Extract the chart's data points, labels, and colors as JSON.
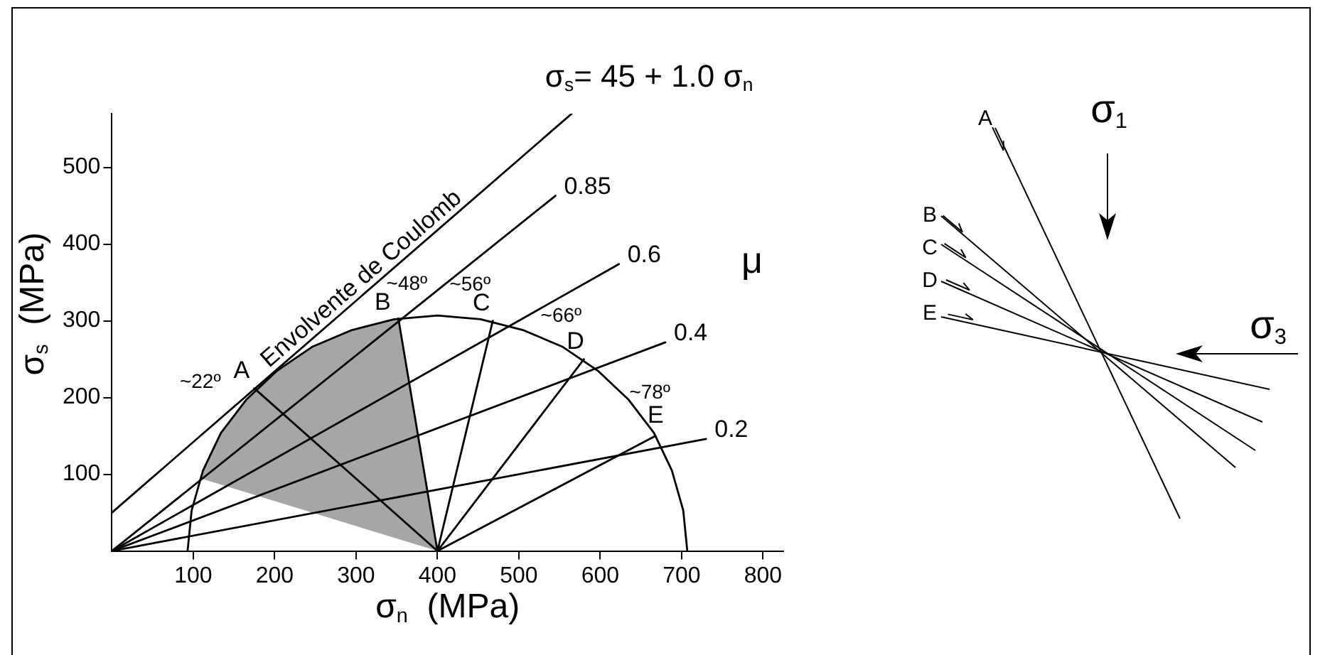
{
  "chart_data": [
    {
      "type": "line",
      "xlabel": "σ$_{n}$  (MPa)",
      "ylabel": "σ$_{s}$  (MPa)",
      "legend_title": "μ",
      "xlim": [
        0,
        825
      ],
      "ylim": [
        0,
        570
      ],
      "xticks": [
        100,
        200,
        300,
        400,
        500,
        600,
        700,
        800
      ],
      "yticks": [
        100,
        200,
        300,
        400,
        500
      ],
      "grid": false,
      "legend": false,
      "annotations": [
        "σ$_{s}$= 45 + 1.0 σ$_{n}$",
        {
          "text": "A",
          "x": 175,
          "y": 212
        },
        {
          "text": "B",
          "x": 352,
          "y": 303
        },
        {
          "text": "C",
          "x": 468,
          "y": 300
        },
        {
          "text": "D",
          "x": 580,
          "y": 250
        },
        {
          "text": "E",
          "x": 668,
          "y": 150
        },
        {
          "text": "~22º",
          "x": 175,
          "y": 212
        },
        {
          "text": "~48º",
          "x": 352,
          "y": 303
        },
        {
          "text": "~56º",
          "x": 468,
          "y": 300
        },
        {
          "text": "~66º",
          "x": 580,
          "y": 250
        },
        {
          "text": "~78º",
          "x": 668,
          "y": 150
        }
      ],
      "series": [
        {
          "type": "area",
          "color": "#a6a6a6",
          "x": [
            400,
            352,
            295,
            246,
            203,
            165,
            134,
            108,
            400
          ],
          "values": [
            0,
            303,
            288,
            266,
            235,
            197,
            154,
            95,
            0
          ]
        },
        {
          "name": "Envolvente de Coulomb",
          "color": "#000000",
          "x": [
            0,
            565
          ],
          "values": [
            50,
            570
          ]
        },
        {
          "name": "0.85",
          "color": "#000000",
          "x": [
            0,
            545
          ],
          "values": [
            0,
            463
          ]
        },
        {
          "name": "0.6",
          "color": "#000000",
          "x": [
            0,
            623
          ],
          "values": [
            0,
            374
          ]
        },
        {
          "name": "0.4",
          "color": "#000000",
          "x": [
            0,
            680
          ],
          "values": [
            0,
            272
          ]
        },
        {
          "name": "0.2",
          "color": "#000000",
          "x": [
            0,
            730
          ],
          "values": [
            0,
            146
          ]
        },
        {
          "color": "#000000",
          "x": [
            707,
            702,
            688,
            666,
            635,
            597,
            554,
            505,
            453,
            400,
            347,
            295,
            246,
            203,
            165,
            134,
            112,
            98,
            93
          ],
          "values": [
            0,
            53,
            105,
            154,
            197,
            235,
            266,
            288,
            302,
            307,
            302,
            288,
            266,
            235,
            197,
            154,
            105,
            53,
            0
          ]
        },
        {
          "color": "#000000",
          "x": [
            175,
            400,
            352,
            400,
            468,
            400,
            580,
            400,
            668
          ],
          "values": [
            212,
            0,
            303,
            0,
            300,
            0,
            250,
            0,
            150
          ]
        }
      ]
    },
    {
      "type": "other",
      "annotations": [
        "σ$_{1}$",
        "σ$_{3}$",
        "A",
        "B",
        "C",
        "D",
        "E"
      ]
    }
  ]
}
